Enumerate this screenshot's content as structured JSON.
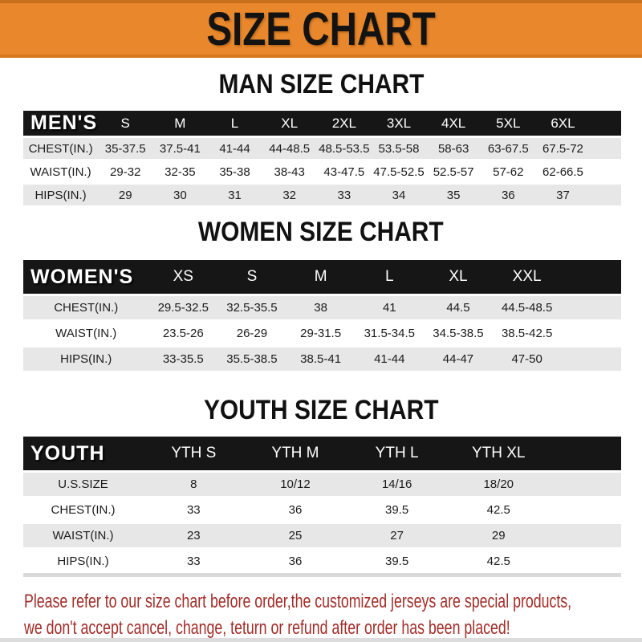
{
  "banner": {
    "title": "SIZE CHART"
  },
  "colors": {
    "banner_orange": "#E8872C",
    "banner_border": "#C76F1C",
    "header_bar_black": "#161616",
    "row_gray": "#E7E7E7",
    "note_red": "#A32D28"
  },
  "sections": [
    {
      "id": "men",
      "heading": "MAN SIZE CHART",
      "table": {
        "label": "MEN'S",
        "columns": [
          "S",
          "M",
          "L",
          "XL",
          "2XL",
          "3XL",
          "4XL",
          "5XL",
          "6XL"
        ],
        "rows": [
          {
            "label": "CHEST(IN.)",
            "values": [
              "35-37.5",
              "37.5-41",
              "41-44",
              "44-48.5",
              "48.5-53.5",
              "53.5-58",
              "58-63",
              "63-67.5",
              "67.5-72"
            ]
          },
          {
            "label": "WAIST(IN.)",
            "values": [
              "29-32",
              "32-35",
              "35-38",
              "38-43",
              "43-47.5",
              "47.5-52.5",
              "52.5-57",
              "57-62",
              "62-66.5"
            ]
          },
          {
            "label": "HIPS(IN.)",
            "values": [
              "29",
              "30",
              "31",
              "32",
              "33",
              "34",
              "35",
              "36",
              "37"
            ]
          }
        ]
      }
    },
    {
      "id": "women",
      "heading": "WOMEN SIZE CHART",
      "table": {
        "label": "WOMEN'S",
        "columns": [
          "XS",
          "S",
          "M",
          "L",
          "XL",
          "XXL"
        ],
        "rows": [
          {
            "label": "CHEST(IN.)",
            "values": [
              "29.5-32.5",
              "32.5-35.5",
              "38",
              "41",
              "44.5",
              "44.5-48.5"
            ]
          },
          {
            "label": "WAIST(IN.)",
            "values": [
              "23.5-26",
              "26-29",
              "29-31.5",
              "31.5-34.5",
              "34.5-38.5",
              "38.5-42.5"
            ]
          },
          {
            "label": "HIPS(IN.)",
            "values": [
              "33-35.5",
              "35.5-38.5",
              "38.5-41",
              "41-44",
              "44-47",
              "47-50"
            ]
          }
        ]
      }
    },
    {
      "id": "youth",
      "heading": "YOUTH SIZE CHART",
      "table": {
        "label": "YOUTH",
        "columns": [
          "YTH S",
          "YTH M",
          "YTH L",
          "YTH XL"
        ],
        "rows": [
          {
            "label": "U.S.SIZE",
            "values": [
              "8",
              "10/12",
              "14/16",
              "18/20"
            ]
          },
          {
            "label": "CHEST(IN.)",
            "values": [
              "33",
              "36",
              "39.5",
              "42.5"
            ]
          },
          {
            "label": "WAIST(IN.)",
            "values": [
              "23",
              "25",
              "27",
              "29"
            ]
          },
          {
            "label": "HIPS(IN.)",
            "values": [
              "33",
              "36",
              "39.5",
              "42.5"
            ]
          }
        ]
      }
    }
  ],
  "footer": {
    "line1": "Please refer to our size chart before order,the customized jerseys are special products,",
    "line2": "we don't accept cancel, change, teturn or refund after order has been placed!"
  }
}
